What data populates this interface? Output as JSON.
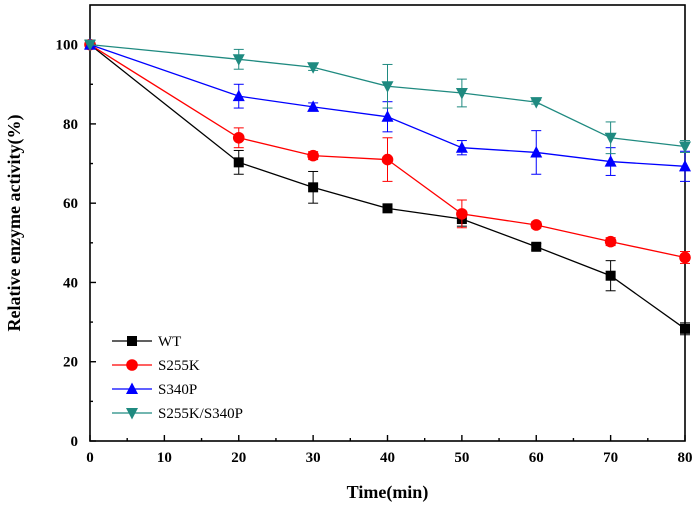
{
  "chart_data": {
    "type": "line",
    "xlabel": "Time(min)",
    "ylabel": "Relative enzyme activity(%)",
    "xlim": [
      0,
      80
    ],
    "ylim": [
      0,
      110
    ],
    "xticks": [
      0,
      10,
      20,
      30,
      40,
      50,
      60,
      70,
      80
    ],
    "yticks": [
      0,
      20,
      40,
      60,
      80,
      100
    ],
    "grid": false,
    "legend_position": "bottom-left",
    "x": [
      0,
      20,
      30,
      40,
      50,
      60,
      70,
      80
    ],
    "series": [
      {
        "name": "WT",
        "color": "#000000",
        "marker": "square",
        "values": [
          100,
          70.3,
          64.0,
          58.7,
          56.0,
          49.0,
          41.7,
          28.3
        ],
        "errors": [
          0,
          3.0,
          4.0,
          0.8,
          1.8,
          0.8,
          3.8,
          1.5
        ]
      },
      {
        "name": "S255K",
        "color": "#ff0000",
        "marker": "circle",
        "values": [
          100,
          76.5,
          72.0,
          71.0,
          57.3,
          54.5,
          50.3,
          46.3
        ],
        "errors": [
          0,
          2.5,
          1.0,
          5.5,
          3.5,
          0.8,
          1.0,
          1.5
        ]
      },
      {
        "name": "S340P",
        "color": "#0000ff",
        "marker": "triangle-up",
        "values": [
          100,
          87.0,
          84.3,
          81.8,
          74.0,
          72.8,
          70.5,
          69.3
        ],
        "errors": [
          0,
          3.0,
          1.0,
          3.8,
          1.8,
          5.5,
          3.5,
          3.8
        ]
      },
      {
        "name": "S255K/S340P",
        "color": "#1f8a80",
        "marker": "triangle-down",
        "values": [
          100,
          96.3,
          94.3,
          89.5,
          87.8,
          85.5,
          76.5,
          74.3
        ],
        "errors": [
          0,
          2.5,
          0.8,
          5.5,
          3.5,
          0.5,
          4.0,
          1.5
        ]
      }
    ]
  }
}
